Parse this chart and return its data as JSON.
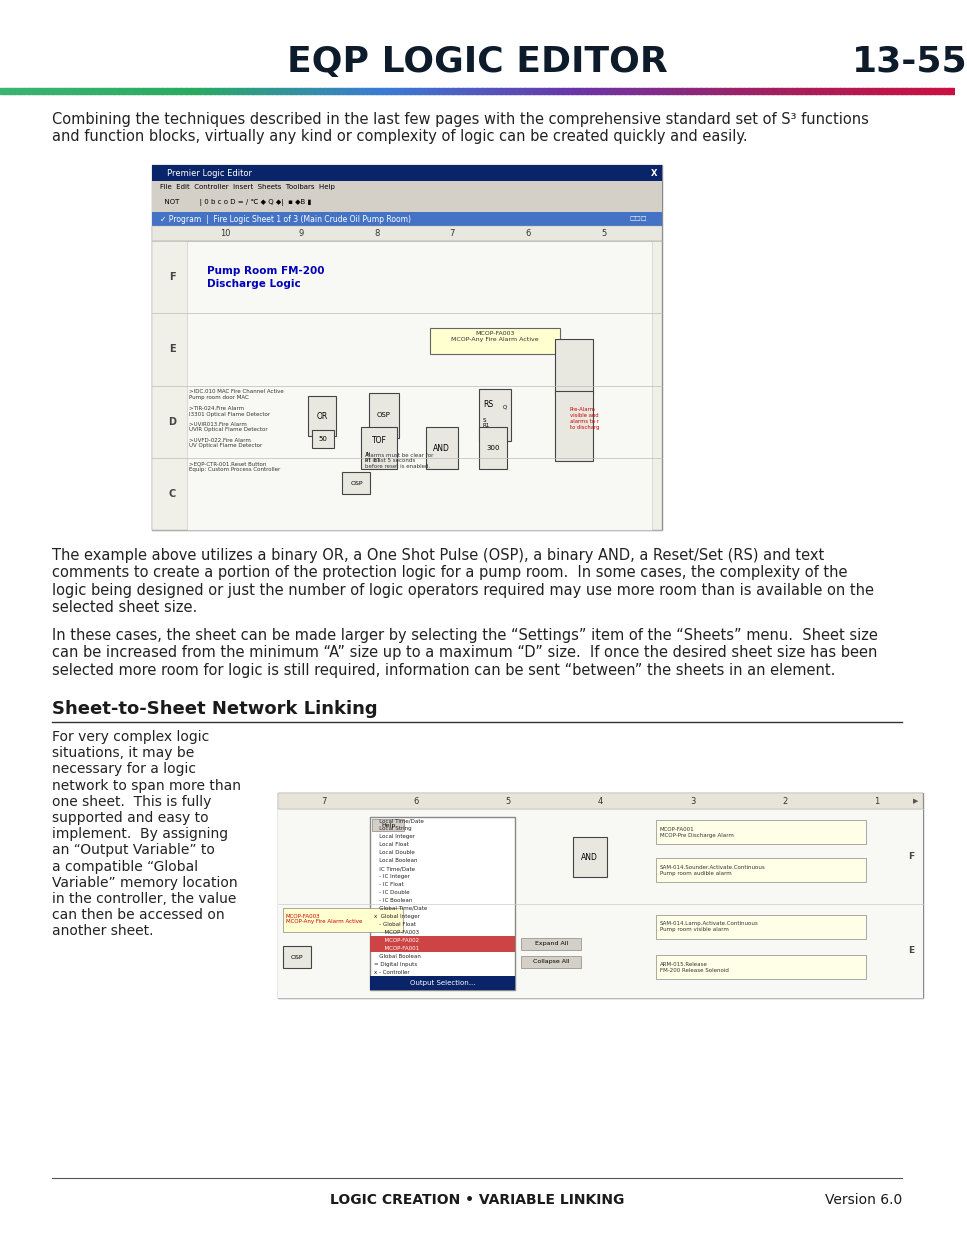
{
  "page_bg": "#ffffff",
  "header_title": "EQP LOGIC EDITOR",
  "header_page": "13-55",
  "header_title_color": "#0d1b2a",
  "header_font_size": 26,
  "body_text_1": "Combining the techniques described in the last few pages with the comprehensive standard set of S³ functions\nand function blocks, virtually any kind or complexity of logic can be created quickly and easily.",
  "body_text_1_fontsize": 10.5,
  "body_text_2": "The example above utilizes a binary OR, a One Shot Pulse (OSP), a binary AND, a Reset/Set (RS) and text\ncomments to create a portion of the protection logic for a pump room.  In some cases, the complexity of the\nlogic being designed or just the number of logic operators required may use more room than is available on the\nselected sheet size.",
  "body_text_2_fontsize": 10.5,
  "body_text_3": "In these cases, the sheet can be made larger by selecting the “Settings” item of the “Sheets” menu.  Sheet size\ncan be increased from the minimum “A” size up to a maximum “D” size.  If once the desired sheet size has been\nselected more room for logic is still required, information can be sent “between” the sheets in an element.",
  "body_text_3_fontsize": 10.5,
  "section_heading": "Sheet-to-Sheet Network Linking",
  "section_heading_fontsize": 13,
  "side_text": "For very complex logic\nsituations, it may be\nnecessary for a logic\nnetwork to span more than\none sheet.  This is fully\nsupported and easy to\nimplement.  By assigning\nan “Output Variable” to\na compatible “Global\nVariable” memory location\nin the controller, the value\ncan then be accessed on\nanother sheet.",
  "side_text_fontsize": 10.0,
  "footer_text_center": "LOGIC CREATION • VARIABLE LINKING",
  "footer_text_right": "Version 6.0",
  "footer_fontsize": 10
}
